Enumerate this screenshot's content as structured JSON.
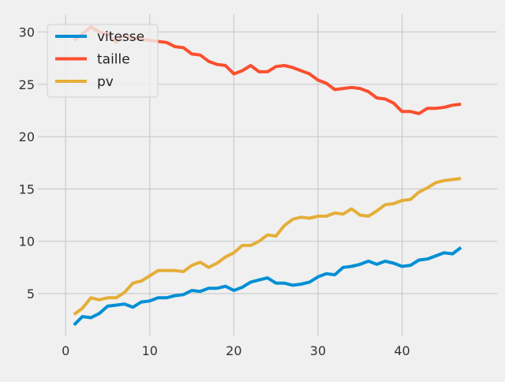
{
  "chart_data": {
    "type": "line",
    "title": "",
    "xlabel": "",
    "ylabel": "",
    "xlim": [
      -3.3,
      51.3
    ],
    "ylim": [
      1.0,
      31.7
    ],
    "x_ticks": [
      0,
      10,
      20,
      30,
      40
    ],
    "y_ticks": [
      5,
      10,
      15,
      20,
      25,
      30
    ],
    "grid": true,
    "legend_position": "top-left",
    "x": [
      1,
      2,
      3,
      4,
      5,
      6,
      7,
      8,
      9,
      10,
      11,
      12,
      13,
      14,
      15,
      16,
      17,
      18,
      19,
      20,
      21,
      22,
      23,
      24,
      25,
      26,
      27,
      28,
      29,
      30,
      31,
      32,
      33,
      34,
      35,
      36,
      37,
      38,
      39,
      40,
      41,
      42,
      43,
      44,
      45,
      46,
      47
    ],
    "series": [
      {
        "name": "vitesse",
        "color": "#008fd5",
        "values": [
          2.0,
          2.8,
          2.7,
          3.1,
          3.8,
          3.9,
          4.0,
          3.7,
          4.2,
          4.3,
          4.6,
          4.6,
          4.8,
          4.9,
          5.3,
          5.2,
          5.5,
          5.5,
          5.7,
          5.3,
          5.6,
          6.1,
          6.3,
          6.5,
          6.0,
          6.0,
          5.8,
          5.9,
          6.1,
          6.6,
          6.9,
          6.8,
          7.5,
          7.6,
          7.8,
          8.1,
          7.8,
          8.1,
          7.9,
          7.6,
          7.7,
          8.2,
          8.3,
          8.6,
          8.9,
          8.8,
          9.4
        ]
      },
      {
        "name": "taille",
        "color": "#fc4f30",
        "values": [
          29.2,
          29.8,
          30.5,
          30.0,
          29.8,
          29.0,
          29.7,
          29.4,
          29.3,
          29.2,
          29.1,
          29.0,
          28.6,
          28.5,
          27.9,
          27.8,
          27.2,
          26.9,
          26.8,
          26.0,
          26.3,
          26.8,
          26.2,
          26.2,
          26.7,
          26.8,
          26.6,
          26.3,
          26.0,
          25.4,
          25.1,
          24.5,
          24.6,
          24.7,
          24.6,
          24.3,
          23.7,
          23.6,
          23.2,
          22.4,
          22.4,
          22.2,
          22.7,
          22.7,
          22.8,
          23.0,
          23.1
        ]
      },
      {
        "name": "pv",
        "color": "#e5ae38",
        "values": [
          3.0,
          3.6,
          4.6,
          4.4,
          4.6,
          4.6,
          5.1,
          6.0,
          6.2,
          6.7,
          7.2,
          7.2,
          7.2,
          7.1,
          7.7,
          8.0,
          7.5,
          7.9,
          8.5,
          8.9,
          9.6,
          9.6,
          10.0,
          10.6,
          10.5,
          11.5,
          12.1,
          12.3,
          12.2,
          12.4,
          12.4,
          12.7,
          12.6,
          13.1,
          12.5,
          12.4,
          12.9,
          13.5,
          13.6,
          13.9,
          14.0,
          14.7,
          15.1,
          15.6,
          15.8,
          15.9,
          16.0
        ]
      }
    ]
  }
}
